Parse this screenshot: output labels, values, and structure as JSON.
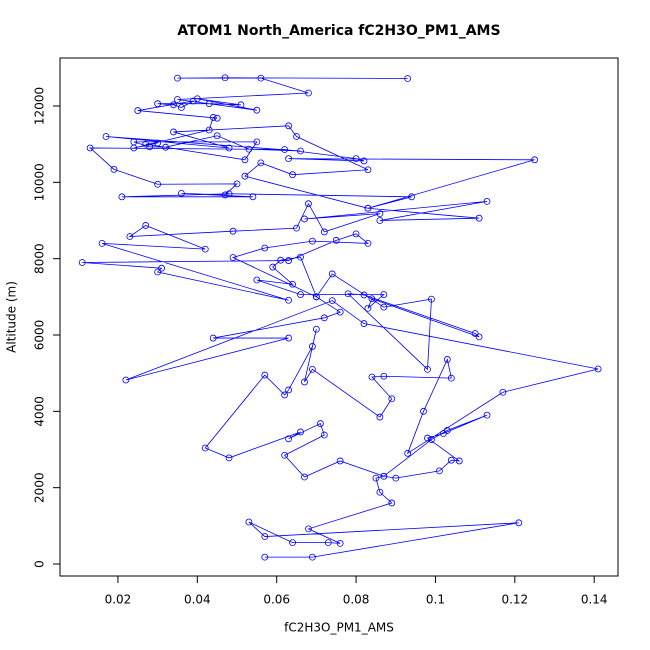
{
  "chart_data": {
    "type": "line",
    "title": "ATOM1 North_America fC2H3O_PM1_AMS",
    "x_label": "fC2H3O_PM1_AMS",
    "y_label": "Altitude (m)",
    "color": "#0000ff",
    "markers": true,
    "xlim": [
      0.0054,
      0.146
    ],
    "ylim": [
      -314,
      13257
    ],
    "xticks": [
      0.02,
      0.04,
      0.06,
      0.08,
      0.1,
      0.12,
      0.14
    ],
    "yticks": [
      0,
      2000,
      4000,
      6000,
      8000,
      10000,
      12000
    ],
    "series": [
      {
        "name": "fC2H3O_PM1_AMS",
        "x": [
          0.057,
          0.069,
          0.121,
          0.057,
          0.053,
          0.064,
          0.073,
          0.076,
          0.068,
          0.089,
          0.086,
          0.085,
          0.087,
          0.09,
          0.101,
          0.104,
          0.106,
          0.098,
          0.102,
          0.113,
          0.103,
          0.099,
          0.087,
          0.076,
          0.067,
          0.062,
          0.072,
          0.071,
          0.063,
          0.066,
          0.048,
          0.042,
          0.057,
          0.062,
          0.063,
          0.069,
          0.07,
          0.067,
          0.069,
          0.086,
          0.089,
          0.084,
          0.087,
          0.104,
          0.103,
          0.097,
          0.093,
          0.117,
          0.141,
          0.082,
          0.074,
          0.022,
          0.063,
          0.044,
          0.072,
          0.076,
          0.07,
          0.074,
          0.087,
          0.099,
          0.098,
          0.078,
          0.082,
          0.11,
          0.111,
          0.084,
          0.083,
          0.087,
          0.066,
          0.055,
          0.064,
          0.059,
          0.061,
          0.066,
          0.07,
          0.049,
          0.057,
          0.069,
          0.083,
          0.08,
          0.075,
          0.063,
          0.011,
          0.031,
          0.03,
          0.063,
          0.016,
          0.042,
          0.027,
          0.023,
          0.049,
          0.065,
          0.068,
          0.072,
          0.086,
          0.067,
          0.113,
          0.086,
          0.111,
          0.083,
          0.094,
          0.048,
          0.021,
          0.054,
          0.036,
          0.047,
          0.05,
          0.03,
          0.019,
          0.013,
          0.062,
          0.08,
          0.082,
          0.063,
          0.125,
          0.083,
          0.052,
          0.056,
          0.064,
          0.083,
          0.065,
          0.063,
          0.034,
          0.048,
          0.017,
          0.066,
          0.053,
          0.045,
          0.032,
          0.028,
          0.024,
          0.055,
          0.052,
          0.027,
          0.03,
          0.024,
          0.043,
          0.044,
          0.045,
          0.025,
          0.039,
          0.036,
          0.034,
          0.03,
          0.043,
          0.051,
          0.04,
          0.055,
          0.035,
          0.068,
          0.056,
          0.035,
          0.047,
          0.093
        ],
        "values": [
          180,
          180,
          1080,
          720,
          1100,
          560,
          560,
          540,
          920,
          1600,
          1880,
          2250,
          2300,
          2250,
          2440,
          2720,
          2700,
          3300,
          3420,
          3900,
          3500,
          3260,
          2300,
          2700,
          2280,
          2850,
          3380,
          3680,
          3280,
          3460,
          2780,
          3040,
          4950,
          4430,
          4560,
          5700,
          6150,
          4770,
          5100,
          3850,
          4330,
          4900,
          4920,
          4870,
          5360,
          4000,
          2900,
          4500,
          5110,
          6300,
          6900,
          4820,
          5920,
          5920,
          6450,
          6600,
          7000,
          7600,
          6730,
          6940,
          5100,
          7080,
          7050,
          6040,
          5950,
          6950,
          6700,
          7060,
          7060,
          7440,
          7330,
          7780,
          7960,
          8040,
          7000,
          8030,
          8280,
          8460,
          8400,
          8650,
          8480,
          7950,
          7900,
          7750,
          7650,
          6910,
          8400,
          8250,
          8870,
          8580,
          8720,
          8800,
          9440,
          8700,
          9180,
          9040,
          9500,
          9000,
          9060,
          9320,
          9620,
          9700,
          9620,
          9620,
          9710,
          9670,
          9960,
          9950,
          10340,
          10900,
          10860,
          10620,
          10560,
          10620,
          10590,
          9320,
          10160,
          10510,
          10200,
          10330,
          11200,
          11480,
          11320,
          10900,
          11200,
          10820,
          10870,
          11220,
          10920,
          10930,
          11060,
          11060,
          10590,
          11000,
          11030,
          10900,
          11370,
          11700,
          11680,
          11880,
          12130,
          11960,
          12030,
          12060,
          12060,
          12030,
          12190,
          11890,
          12170,
          12340,
          12730,
          12730,
          12740,
          12720
        ]
      }
    ]
  }
}
